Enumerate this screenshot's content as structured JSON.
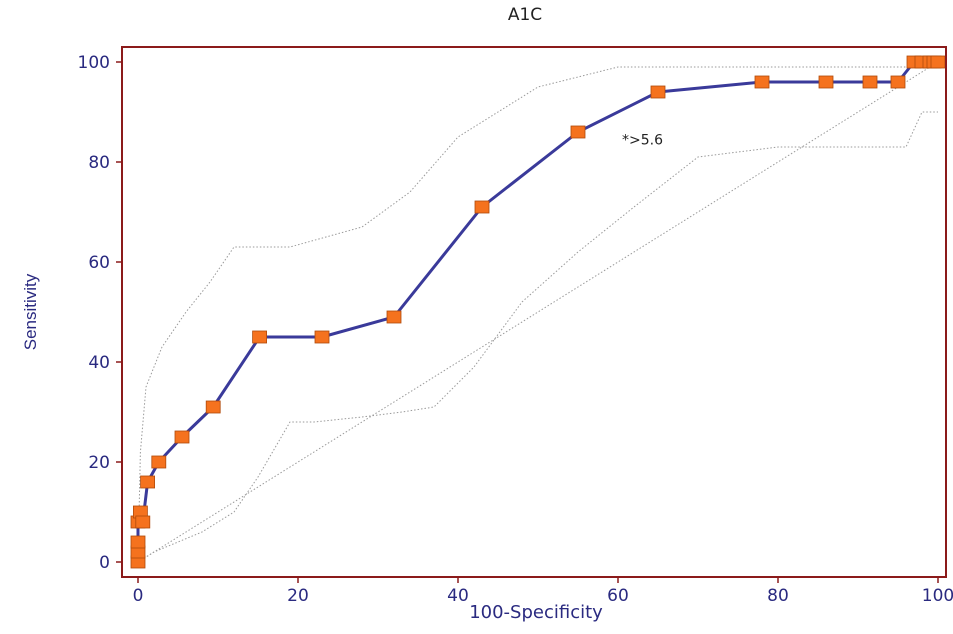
{
  "chart_data": {
    "type": "line",
    "title": "A1C",
    "xlabel": "100-Specificity",
    "ylabel": "Sensitivity",
    "xlim": [
      -2,
      101
    ],
    "ylim": [
      -3,
      103
    ],
    "x_ticks": [
      "0",
      "20",
      "40",
      "60",
      "80",
      "100"
    ],
    "y_ticks": [
      "0",
      "20",
      "40",
      "60",
      "80",
      "100"
    ],
    "grid": false,
    "colors": {
      "roc_line": "#3a3a9a",
      "marker_fill": "#f5721e",
      "marker_stroke": "#b04a0a",
      "frame": "#8b1a1a",
      "axis_text": "#2a2a80",
      "confidence_band": "#9a9a9a"
    },
    "series": [
      {
        "x": [
          0,
          0,
          0,
          0,
          0.3,
          0.6,
          1.2,
          2.6,
          5.5,
          9.4,
          15.2,
          23,
          32,
          43,
          55,
          65,
          78,
          86,
          91.5,
          95,
          97,
          98,
          99,
          99.5,
          100
        ],
        "y": [
          0,
          2,
          4,
          8,
          10,
          8,
          16,
          20,
          25,
          31,
          45,
          45,
          49,
          71,
          86,
          94,
          96,
          96,
          96,
          96,
          100,
          100,
          100,
          100,
          100
        ]
      }
    ],
    "confidence_upper": {
      "x": [
        0,
        0.3,
        1,
        3,
        6,
        9,
        12,
        19,
        28,
        34,
        40,
        50,
        60,
        70,
        80,
        96,
        100
      ],
      "y": [
        0,
        22,
        35,
        43,
        50,
        56,
        63,
        63,
        67,
        74,
        85,
        95,
        99,
        99,
        99,
        99,
        100
      ]
    },
    "confidence_lower": {
      "x": [
        0,
        2,
        5,
        8,
        12,
        15,
        19,
        22,
        28,
        33,
        37,
        42,
        48,
        55,
        62,
        70,
        80,
        90,
        96,
        98,
        100
      ],
      "y": [
        0,
        2,
        4,
        6,
        10,
        17,
        28,
        28,
        29,
        30,
        31,
        39,
        52,
        62,
        71,
        81,
        83,
        83,
        83,
        90,
        90
      ]
    },
    "diagonal": {
      "x": [
        0,
        100
      ],
      "y": [
        0,
        100
      ]
    },
    "annotations": [
      {
        "text": "*>5.6",
        "x": 60.5,
        "y": 83.5
      }
    ]
  }
}
